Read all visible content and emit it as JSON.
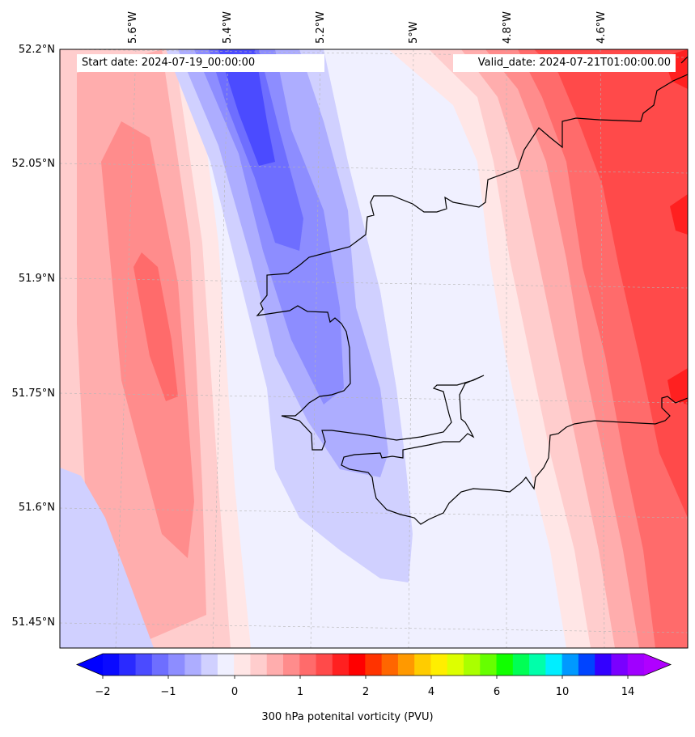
{
  "map": {
    "start_date": "Start date: 2024-07-19_00:00:00",
    "valid_date": "Valid_date: 2024-07-21T01:00:00.00",
    "lon_labels": [
      "5.6°W",
      "5.4°W",
      "5.2°W",
      "5°W",
      "4.8°W",
      "4.6°W"
    ],
    "lat_labels": [
      "52.2°N",
      "52.05°N",
      "51.9°N",
      "51.75°N",
      "51.6°N",
      "51.45°N"
    ],
    "field": "300 hPa potential vorticity",
    "extent": {
      "lon_min": -5.75,
      "lon_max": -4.45,
      "lat_min": 51.42,
      "lat_max": 52.2
    }
  },
  "colorbar": {
    "title": "300 hPa potenital vorticity (PVU)",
    "tick_labels": [
      "−2",
      "−1",
      "0",
      "1",
      "2",
      "4",
      "6",
      "10",
      "14"
    ],
    "tick_values": [
      -2,
      -1,
      0,
      1,
      2,
      4,
      6,
      10,
      14
    ],
    "colors": [
      "#0a0aff",
      "#2a2aff",
      "#4b4bff",
      "#6e6eff",
      "#8d8dff",
      "#adadff",
      "#d0d0ff",
      "#f0f0ff",
      "#ffe6e6",
      "#ffcdcd",
      "#ffadad",
      "#ff8c8c",
      "#ff6b6b",
      "#ff4a4a",
      "#ff2020",
      "#ff0000",
      "#ff3300",
      "#ff6600",
      "#ff9900",
      "#ffcc00",
      "#ffee00",
      "#ddff00",
      "#aaff00",
      "#66ff00",
      "#11ff00",
      "#00ff55",
      "#00ffaa",
      "#00eeff",
      "#0099ff",
      "#0044ff",
      "#3300ff",
      "#7a00ff",
      "#a000ff"
    ],
    "extend_low_color": "#0000ff",
    "extend_high_color": "#b000ff"
  }
}
